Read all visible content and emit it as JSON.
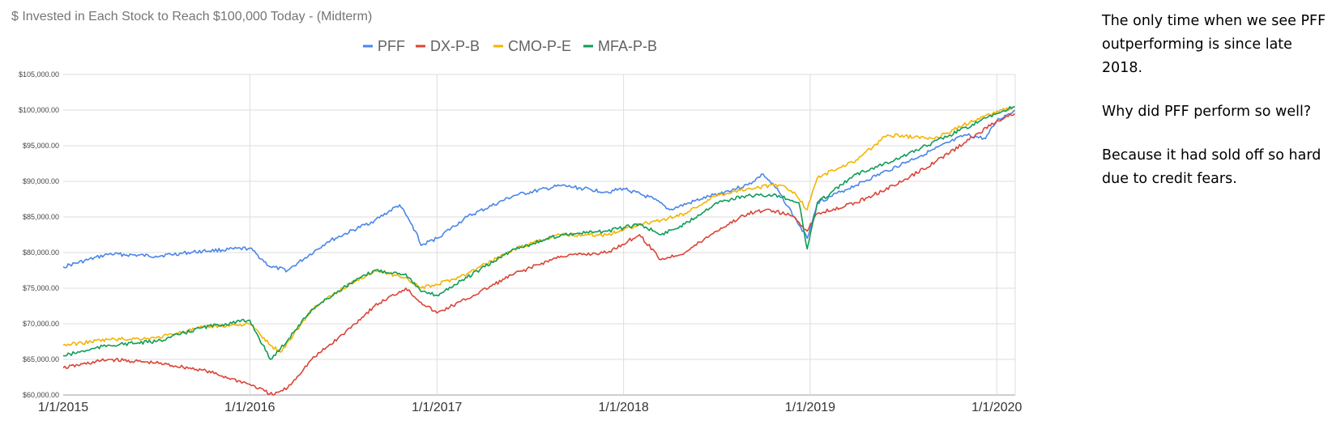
{
  "annotation": {
    "paragraphs": [
      "The only time when we see PFF outperforming is since late 2018.",
      "Why did PFF perform so well?",
      "Because it had sold off so hard due to credit fears."
    ]
  },
  "chart_data": {
    "type": "line",
    "title": "$ Invested in Each Stock to Reach $100,000 Today - (Midterm)",
    "xlabel": "",
    "ylabel": "",
    "x_ticks": [
      "1/1/2015",
      "1/1/2016",
      "1/1/2017",
      "1/1/2018",
      "1/1/2019",
      "1/1/2020"
    ],
    "y_ticks": [
      "$60,000.00",
      "$65,000.00",
      "$70,000.00",
      "$75,000.00",
      "$80,000.00",
      "$85,000.00",
      "$90,000.00",
      "$95,000.00",
      "$100,000.00",
      "$105,000.00"
    ],
    "ylim": [
      60000,
      105000
    ],
    "xlim": [
      "2015-01-01",
      "2020-02-06"
    ],
    "grid": true,
    "legend_position": "top",
    "series": [
      {
        "name": "PFF",
        "color": "#4a86e8",
        "points": [
          [
            "2015-01-01",
            78000
          ],
          [
            "2015-04-01",
            79800
          ],
          [
            "2015-07-01",
            79500
          ],
          [
            "2015-10-01",
            80200
          ],
          [
            "2016-01-01",
            80600
          ],
          [
            "2016-02-10",
            78000
          ],
          [
            "2016-03-15",
            77500
          ],
          [
            "2016-06-01",
            81500
          ],
          [
            "2016-09-01",
            84500
          ],
          [
            "2016-10-20",
            86700
          ],
          [
            "2016-11-20",
            83000
          ],
          [
            "2016-12-01",
            81000
          ],
          [
            "2017-01-01",
            82000
          ],
          [
            "2017-03-01",
            85000
          ],
          [
            "2017-06-01",
            88000
          ],
          [
            "2017-09-01",
            89400
          ],
          [
            "2017-12-01",
            88500
          ],
          [
            "2018-01-01",
            89000
          ],
          [
            "2018-03-01",
            87500
          ],
          [
            "2018-04-01",
            86000
          ],
          [
            "2018-06-01",
            87500
          ],
          [
            "2018-09-01",
            89500
          ],
          [
            "2018-10-01",
            91000
          ],
          [
            "2018-11-01",
            88500
          ],
          [
            "2018-12-01",
            85000
          ],
          [
            "2018-12-26",
            82000
          ],
          [
            "2019-01-15",
            87000
          ],
          [
            "2019-03-01",
            88500
          ],
          [
            "2019-06-01",
            91500
          ],
          [
            "2019-09-01",
            94500
          ],
          [
            "2019-11-01",
            96500
          ],
          [
            "2019-12-10",
            96000
          ],
          [
            "2020-01-01",
            98500
          ],
          [
            "2020-02-05",
            100000
          ]
        ]
      },
      {
        "name": "DX-P-B",
        "color": "#db4437",
        "points": [
          [
            "2015-01-01",
            63800
          ],
          [
            "2015-04-01",
            65000
          ],
          [
            "2015-07-01",
            64500
          ],
          [
            "2015-10-01",
            63500
          ],
          [
            "2016-01-01",
            61500
          ],
          [
            "2016-02-15",
            60000
          ],
          [
            "2016-03-15",
            61000
          ],
          [
            "2016-05-01",
            65000
          ],
          [
            "2016-07-01",
            68500
          ],
          [
            "2016-09-01",
            72500
          ],
          [
            "2016-11-01",
            75000
          ],
          [
            "2016-12-01",
            73000
          ],
          [
            "2017-01-01",
            71500
          ],
          [
            "2017-03-01",
            73500
          ],
          [
            "2017-06-01",
            77000
          ],
          [
            "2017-09-01",
            79500
          ],
          [
            "2017-12-01",
            80000
          ],
          [
            "2018-02-01",
            82500
          ],
          [
            "2018-03-15",
            79000
          ],
          [
            "2018-05-01",
            80000
          ],
          [
            "2018-07-01",
            83000
          ],
          [
            "2018-09-01",
            85500
          ],
          [
            "2018-10-15",
            86000
          ],
          [
            "2018-12-01",
            85000
          ],
          [
            "2018-12-26",
            83000
          ],
          [
            "2019-01-15",
            85500
          ],
          [
            "2019-04-01",
            87000
          ],
          [
            "2019-07-01",
            90000
          ],
          [
            "2019-10-01",
            94000
          ],
          [
            "2020-01-01",
            98500
          ],
          [
            "2020-02-05",
            99500
          ]
        ]
      },
      {
        "name": "CMO-P-E",
        "color": "#f4b400",
        "points": [
          [
            "2015-01-01",
            67000
          ],
          [
            "2015-04-01",
            67800
          ],
          [
            "2015-07-01",
            68000
          ],
          [
            "2015-10-01",
            69500
          ],
          [
            "2016-01-01",
            70000
          ],
          [
            "2016-02-10",
            67000
          ],
          [
            "2016-03-01",
            66000
          ],
          [
            "2016-05-01",
            72000
          ],
          [
            "2016-07-01",
            75000
          ],
          [
            "2016-09-01",
            77500
          ],
          [
            "2016-11-01",
            76500
          ],
          [
            "2016-12-01",
            75000
          ],
          [
            "2017-01-01",
            75500
          ],
          [
            "2017-03-01",
            77000
          ],
          [
            "2017-06-01",
            80500
          ],
          [
            "2017-09-01",
            82500
          ],
          [
            "2017-12-01",
            82500
          ],
          [
            "2018-02-01",
            84000
          ],
          [
            "2018-03-15",
            84500
          ],
          [
            "2018-05-01",
            85500
          ],
          [
            "2018-07-01",
            88000
          ],
          [
            "2018-09-01",
            89000
          ],
          [
            "2018-11-01",
            89500
          ],
          [
            "2018-12-01",
            88500
          ],
          [
            "2018-12-26",
            86000
          ],
          [
            "2019-01-15",
            90500
          ],
          [
            "2019-04-01",
            93000
          ],
          [
            "2019-06-01",
            96500
          ],
          [
            "2019-09-01",
            96000
          ],
          [
            "2019-12-01",
            99000
          ],
          [
            "2020-02-05",
            100500
          ]
        ]
      },
      {
        "name": "MFA-P-B",
        "color": "#0f9d58",
        "points": [
          [
            "2015-01-01",
            65500
          ],
          [
            "2015-04-01",
            67000
          ],
          [
            "2015-07-01",
            67500
          ],
          [
            "2015-10-01",
            69500
          ],
          [
            "2016-01-01",
            70500
          ],
          [
            "2016-02-10",
            65000
          ],
          [
            "2016-03-01",
            66500
          ],
          [
            "2016-05-01",
            72000
          ],
          [
            "2016-07-01",
            75000
          ],
          [
            "2016-09-01",
            77500
          ],
          [
            "2016-11-01",
            77000
          ],
          [
            "2016-12-01",
            74500
          ],
          [
            "2017-01-01",
            74000
          ],
          [
            "2017-03-01",
            76500
          ],
          [
            "2017-06-01",
            80500
          ],
          [
            "2017-09-01",
            82500
          ],
          [
            "2017-12-01",
            83000
          ],
          [
            "2018-02-01",
            84000
          ],
          [
            "2018-03-15",
            82500
          ],
          [
            "2018-05-01",
            84000
          ],
          [
            "2018-07-01",
            87000
          ],
          [
            "2018-09-01",
            88000
          ],
          [
            "2018-11-01",
            88000
          ],
          [
            "2018-12-10",
            87000
          ],
          [
            "2018-12-26",
            80500
          ],
          [
            "2019-01-15",
            87000
          ],
          [
            "2019-04-01",
            91000
          ],
          [
            "2019-07-01",
            93500
          ],
          [
            "2019-10-01",
            96500
          ],
          [
            "2020-01-01",
            99500
          ],
          [
            "2020-02-05",
            100500
          ]
        ]
      }
    ]
  }
}
